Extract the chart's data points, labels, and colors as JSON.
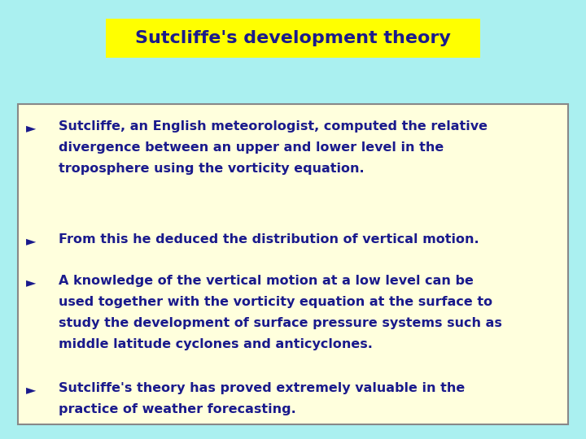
{
  "title": "Sutcliffe's development theory",
  "title_bg": "#FFFF00",
  "title_color": "#1a1a8c",
  "slide_bg": "#aaf0f0",
  "box_bg": "#ffffdd",
  "box_edge_color": "#888888",
  "text_color": "#1a1a8c",
  "bullet_symbol": "►",
  "bullet_points": [
    "Sutcliffe, an English meteorologist, computed the relative\ndivergence between an upper and lower level in the\ntroposphere using the vorticity equation.",
    "From this he deduced the distribution of vertical motion.",
    "A knowledge of the vertical motion at a low level can be\nused together with the vorticity equation at the surface to\nstudy the development of surface pressure systems such as\nmiddle latitude cyclones and anticyclones.",
    "Sutcliffe's theory has proved extremely valuable in the\npractice of weather forecasting."
  ],
  "fontsize": 11.5,
  "title_fontsize": 16,
  "fig_width": 7.2,
  "fig_height": 5.4,
  "dpi": 100
}
